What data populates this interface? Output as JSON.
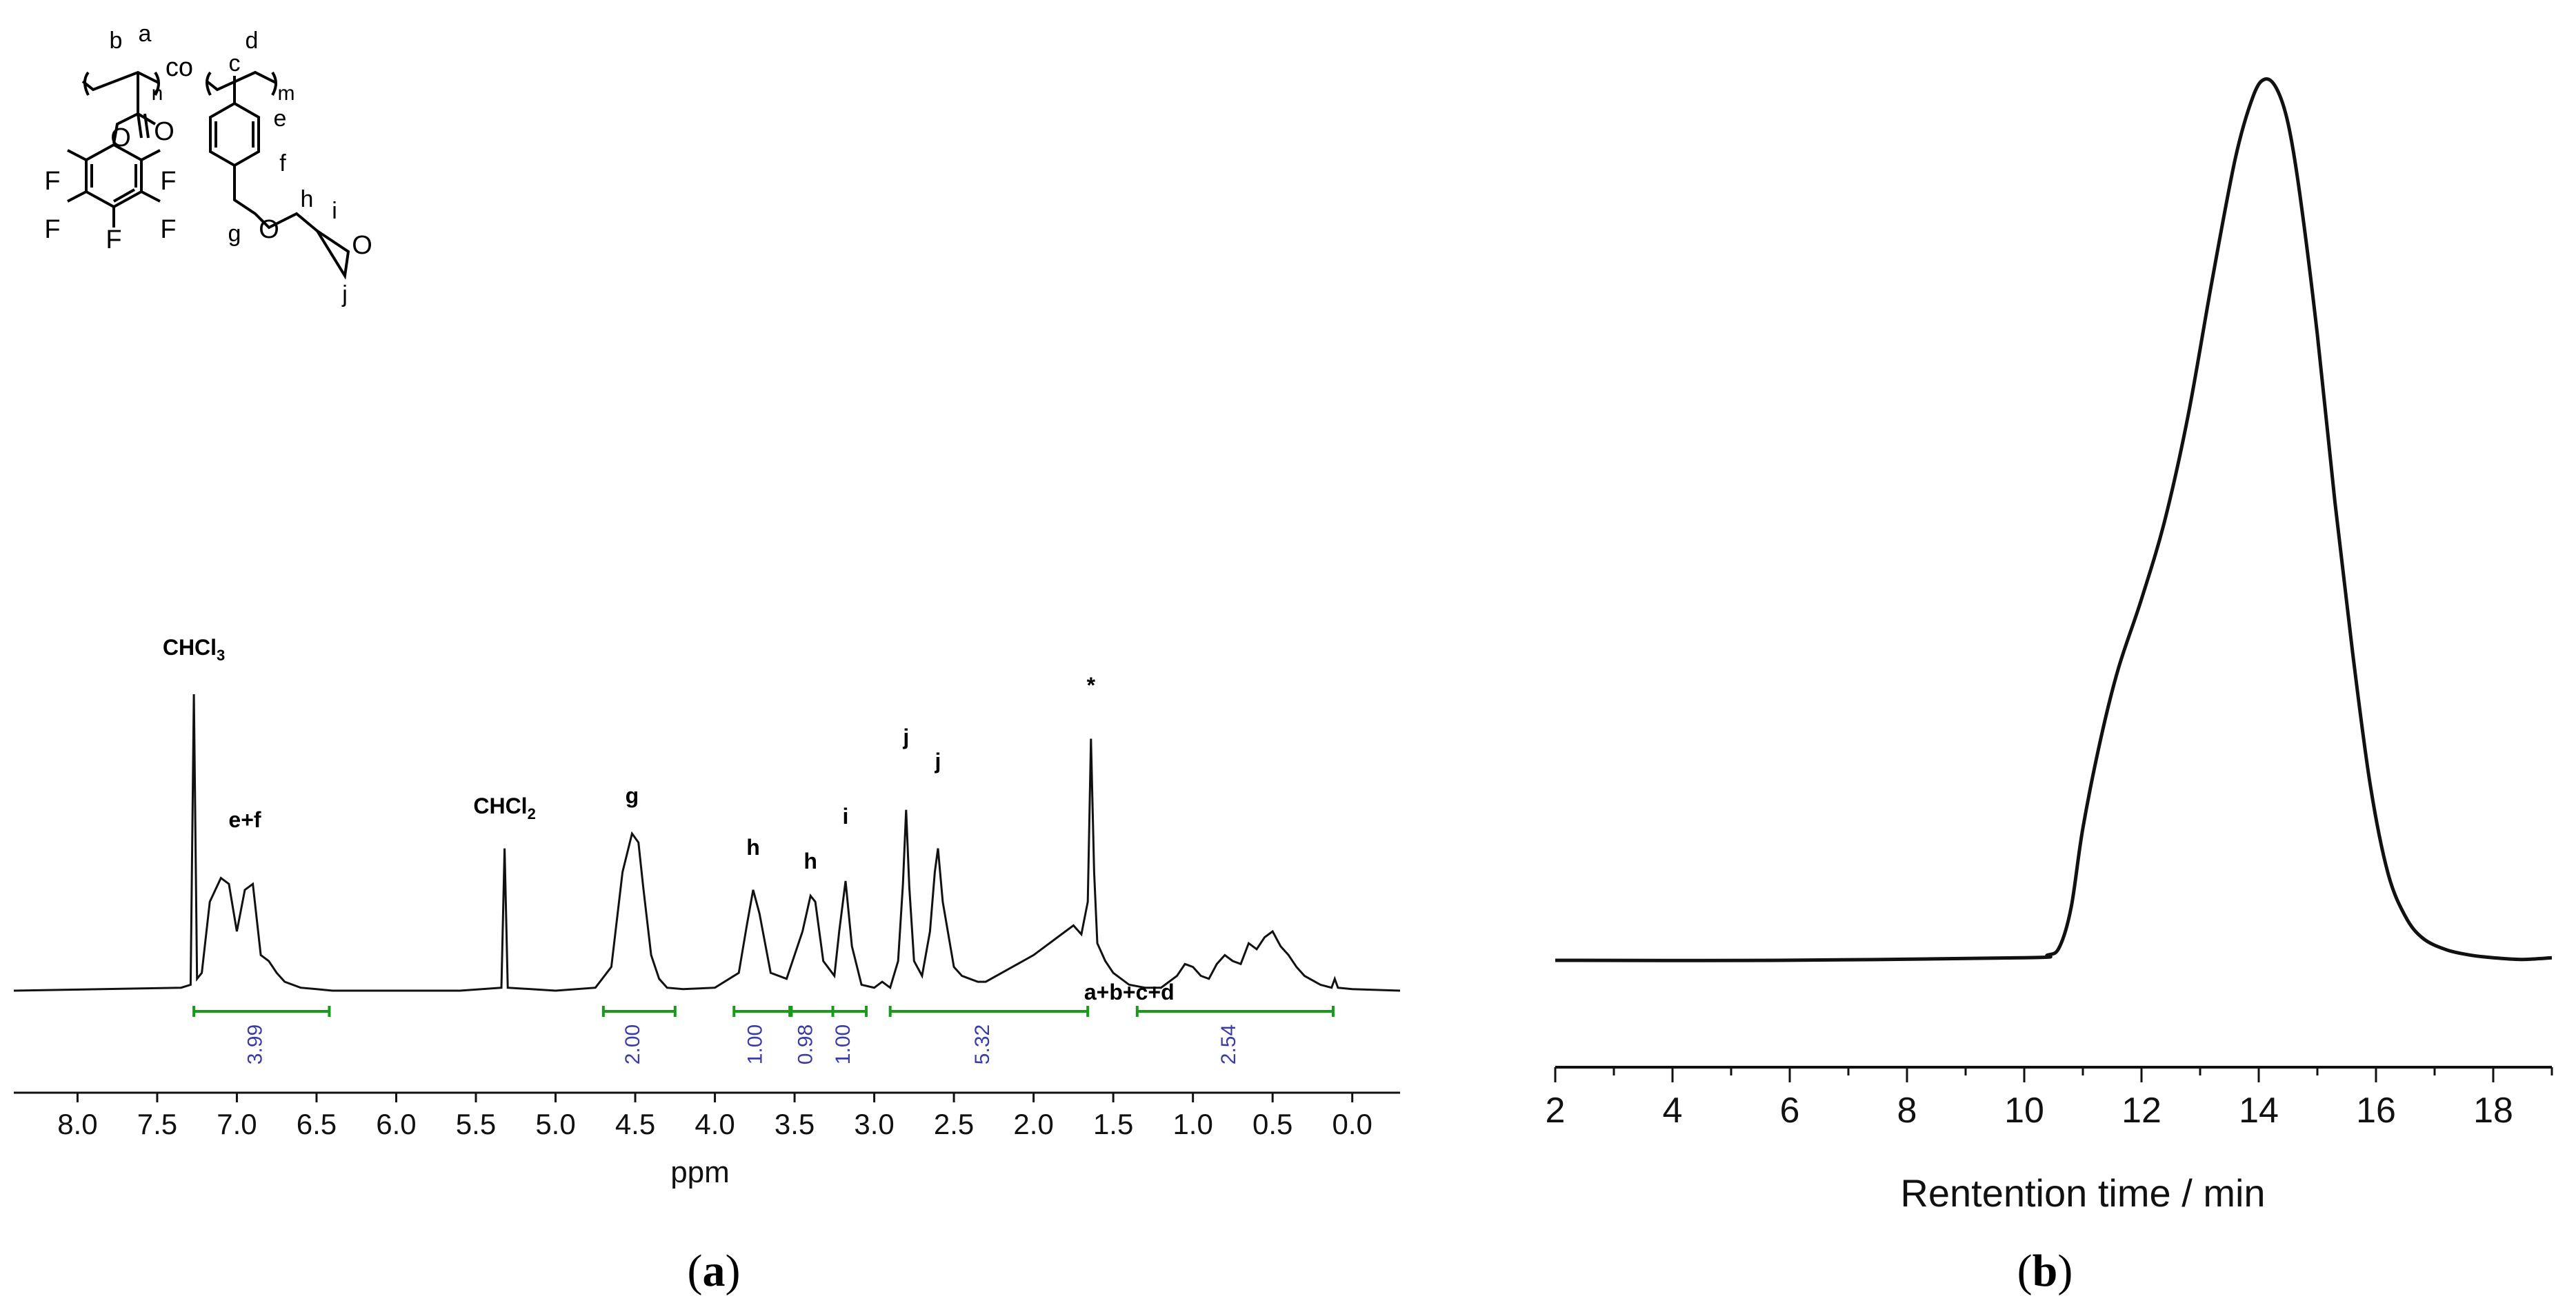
{
  "panel_a_label": "a",
  "panel_b_label": "b",
  "chart_data": [
    {
      "type": "line",
      "panel": "a",
      "xlabel": "ppm",
      "ylabel": "",
      "xlim": [
        8.4,
        -0.3
      ],
      "x_reversed": true,
      "x_ticks": [
        "8.0",
        "7.5",
        "7.0",
        "6.5",
        "6.0",
        "5.5",
        "5.0",
        "4.5",
        "4.0",
        "3.5",
        "3.0",
        "2.5",
        "2.0",
        "1.5",
        "1.0",
        "0.5",
        "0.0"
      ],
      "grid": false,
      "series": [
        {
          "x": [
            8.4,
            7.35,
            7.29,
            7.27,
            7.25,
            7.22,
            7.17,
            7.1,
            7.05,
            7.0,
            6.95,
            6.9,
            6.85,
            6.8,
            6.75,
            6.7,
            6.6,
            6.5,
            6.4,
            5.6,
            5.34,
            5.32,
            5.3,
            5.0,
            4.75,
            4.65,
            4.58,
            4.52,
            4.48,
            4.45,
            4.4,
            4.35,
            4.3,
            4.2,
            4.0,
            3.85,
            3.8,
            3.76,
            3.72,
            3.65,
            3.55,
            3.45,
            3.4,
            3.37,
            3.32,
            3.25,
            3.22,
            3.18,
            3.14,
            3.08,
            3.0,
            2.95,
            2.9,
            2.85,
            2.82,
            2.8,
            2.78,
            2.75,
            2.7,
            2.65,
            2.62,
            2.6,
            2.57,
            2.5,
            2.45,
            2.4,
            2.35,
            2.3,
            2.2,
            2.1,
            2.0,
            1.9,
            1.8,
            1.75,
            1.7,
            1.66,
            1.64,
            1.62,
            1.6,
            1.55,
            1.5,
            1.4,
            1.3,
            1.2,
            1.1,
            1.05,
            1.0,
            0.95,
            0.9,
            0.85,
            0.8,
            0.75,
            0.7,
            0.65,
            0.6,
            0.55,
            0.5,
            0.45,
            0.4,
            0.35,
            0.3,
            0.2,
            0.13,
            0.11,
            0.09,
            0.0,
            -0.3
          ],
          "values": [
            0,
            0.01,
            0.02,
            1.0,
            0.04,
            0.06,
            0.3,
            0.38,
            0.36,
            0.2,
            0.34,
            0.36,
            0.12,
            0.1,
            0.06,
            0.03,
            0.01,
            0.005,
            0,
            0,
            0.01,
            0.48,
            0.01,
            0,
            0.01,
            0.08,
            0.4,
            0.53,
            0.5,
            0.35,
            0.12,
            0.04,
            0.01,
            0.005,
            0.01,
            0.06,
            0.22,
            0.34,
            0.26,
            0.06,
            0.04,
            0.2,
            0.32,
            0.3,
            0.1,
            0.05,
            0.2,
            0.37,
            0.15,
            0.02,
            0.01,
            0.03,
            0.01,
            0.1,
            0.36,
            0.61,
            0.35,
            0.1,
            0.05,
            0.2,
            0.4,
            0.48,
            0.3,
            0.08,
            0.05,
            0.04,
            0.03,
            0.03,
            0.06,
            0.09,
            0.12,
            0.16,
            0.2,
            0.22,
            0.19,
            0.3,
            0.85,
            0.4,
            0.16,
            0.1,
            0.06,
            0.02,
            0.01,
            0.01,
            0.05,
            0.09,
            0.08,
            0.05,
            0.04,
            0.09,
            0.12,
            0.1,
            0.09,
            0.16,
            0.14,
            0.18,
            0.2,
            0.15,
            0.12,
            0.08,
            0.05,
            0.02,
            0.01,
            0.04,
            0.01,
            0.005,
            0
          ]
        }
      ],
      "peak_labels": [
        {
          "text": "CHCl",
          "sub": "3",
          "x": 7.27
        },
        {
          "text": "e+f",
          "sub": "",
          "x": 7.03
        },
        {
          "text": "CHCl",
          "sub": "2",
          "x": 5.32
        },
        {
          "text": "g",
          "sub": "",
          "x": 4.52
        },
        {
          "text": "h",
          "sub": "",
          "x": 3.76
        },
        {
          "text": "h",
          "sub": "",
          "x": 3.4
        },
        {
          "text": "i",
          "sub": "",
          "x": 3.18
        },
        {
          "text": "j",
          "sub": "",
          "x": 2.8
        },
        {
          "text": "j",
          "sub": "",
          "x": 2.6
        },
        {
          "text": "*",
          "sub": "",
          "x": 1.64
        },
        {
          "text": "a+b+c+d",
          "sub": "",
          "x": 1.1
        }
      ],
      "integrals": [
        {
          "from": 7.27,
          "to": 6.42,
          "value": "3.99"
        },
        {
          "from": 4.7,
          "to": 4.25,
          "value": "2.00"
        },
        {
          "from": 3.88,
          "to": 3.53,
          "value": "1.00"
        },
        {
          "from": 3.52,
          "to": 3.26,
          "value": "0.98"
        },
        {
          "from": 3.26,
          "to": 3.05,
          "value": "1.00"
        },
        {
          "from": 2.9,
          "to": 1.66,
          "value": "5.32"
        },
        {
          "from": 1.35,
          "to": 0.12,
          "value": "2.54"
        }
      ]
    },
    {
      "type": "line",
      "panel": "b",
      "xlabel": "Rentention time / min",
      "ylabel": "",
      "xlim": [
        2,
        19
      ],
      "x_ticks": [
        "2",
        "4",
        "6",
        "8",
        "10",
        "12",
        "14",
        "16",
        "18"
      ],
      "grid": false,
      "series": [
        {
          "x": [
            2,
            5.8,
            10.0,
            10.4,
            10.6,
            10.8,
            11.0,
            11.3,
            11.6,
            12.0,
            12.4,
            12.8,
            13.2,
            13.6,
            13.9,
            14.1,
            14.3,
            14.5,
            14.7,
            15.0,
            15.3,
            15.6,
            15.9,
            16.2,
            16.5,
            16.8,
            17.2,
            17.6,
            18.0,
            18.5,
            19.0
          ],
          "values": [
            0,
            0,
            0.003,
            0.006,
            0.015,
            0.06,
            0.15,
            0.25,
            0.33,
            0.41,
            0.5,
            0.62,
            0.77,
            0.91,
            0.98,
            1.0,
            0.99,
            0.95,
            0.87,
            0.71,
            0.52,
            0.35,
            0.2,
            0.1,
            0.05,
            0.025,
            0.012,
            0.006,
            0.003,
            0.001,
            0.003
          ]
        }
      ]
    }
  ],
  "structure": {
    "atom_labels": [
      "b",
      "a",
      "n",
      "co",
      "c",
      "d",
      "m",
      "O",
      "O",
      "e",
      "f",
      "F",
      "F",
      "F",
      "F",
      "F",
      "g",
      "O",
      "h",
      "i",
      "O",
      "j"
    ]
  }
}
